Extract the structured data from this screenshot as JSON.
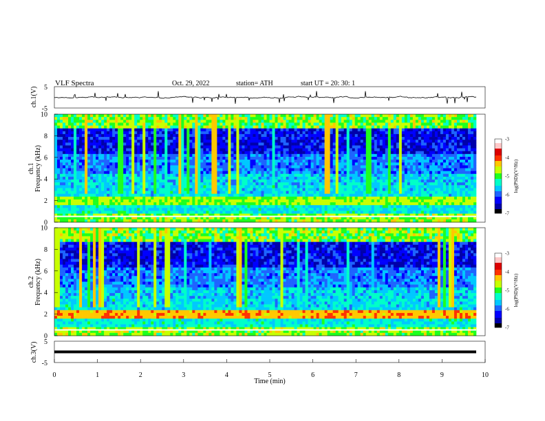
{
  "header": {
    "title": "VLF  Spectra",
    "date": "Oct. 29, 2022",
    "station": "station= ATH",
    "start": "start  UT  =    20: 30: 1"
  },
  "chart_data": [
    {
      "type": "line",
      "name": "ch1-waveform",
      "ylabel": "ch.1(V)",
      "ylim": [
        -5,
        5
      ],
      "yticks": [
        "5",
        "-5"
      ],
      "xlim": [
        0,
        10
      ]
    },
    {
      "type": "heatmap",
      "name": "ch1-spectrogram",
      "ylabel": "ch.1\nFrequency (kHz)",
      "ylabel_lines": [
        "ch.1",
        "Frequency (kHz)"
      ],
      "ylim": [
        0,
        10
      ],
      "yticks": [
        "0",
        "2",
        "4",
        "6",
        "8",
        "10"
      ],
      "xlim": [
        0,
        10
      ],
      "colorbar": {
        "label": "log(PSD)(V²/Hz)",
        "range": [
          -7,
          -3
        ],
        "ticks": [
          "-3",
          "-4",
          "-5",
          "-6",
          "-7"
        ]
      }
    },
    {
      "type": "heatmap",
      "name": "ch2-spectrogram",
      "ylabel_lines": [
        "ch.2",
        "Frequency (kHz)"
      ],
      "ylim": [
        0,
        10
      ],
      "yticks": [
        "0",
        "2",
        "4",
        "6",
        "8",
        "10"
      ],
      "xlim": [
        0,
        10
      ],
      "colorbar": {
        "label": "log(PSD)(V²/Hz)",
        "range": [
          -7,
          -3
        ],
        "ticks": [
          "-3",
          "-4",
          "-5",
          "-6",
          "-7"
        ]
      }
    },
    {
      "type": "line",
      "name": "ch3-waveform",
      "ylabel": "ch.3(V)",
      "ylim": [
        -5,
        5
      ],
      "yticks": [
        "5",
        "-5"
      ],
      "xlim": [
        0,
        10
      ],
      "xlabel": "Time  (min)",
      "xticks": [
        "0",
        "1",
        "2",
        "3",
        "4",
        "5",
        "6",
        "7",
        "8",
        "9",
        "10"
      ]
    }
  ],
  "colors": {
    "scale": [
      "#000000",
      "#0000aa",
      "#0000ff",
      "#1e64ff",
      "#00c8ff",
      "#00ffc8",
      "#1eff1e",
      "#c8ff00",
      "#ffc800",
      "#ff3200",
      "#dc0000",
      "#ffc8c8",
      "#ffffff"
    ]
  }
}
